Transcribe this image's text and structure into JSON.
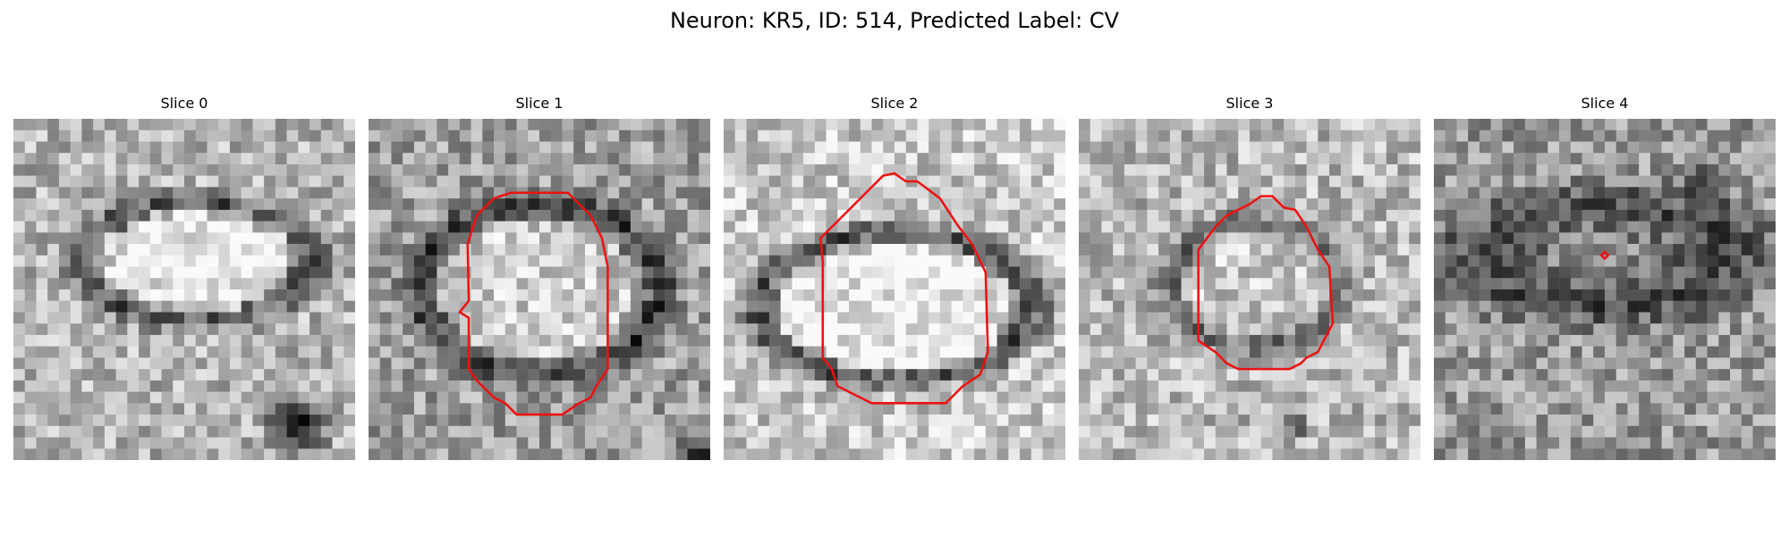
{
  "title": "Neuron: KR5, ID: 514, Predicted Label: CV",
  "slices": [
    {
      "label": "Slice 0",
      "contour": "none"
    },
    {
      "label": "Slice 1",
      "contour": "large-rounded"
    },
    {
      "label": "Slice 2",
      "contour": "large-pointed-top"
    },
    {
      "label": "Slice 3",
      "contour": "medium"
    },
    {
      "label": "Slice 4",
      "contour": "tiny-point"
    }
  ],
  "colors": {
    "contour": "#ee1111",
    "background": "#ffffff"
  }
}
